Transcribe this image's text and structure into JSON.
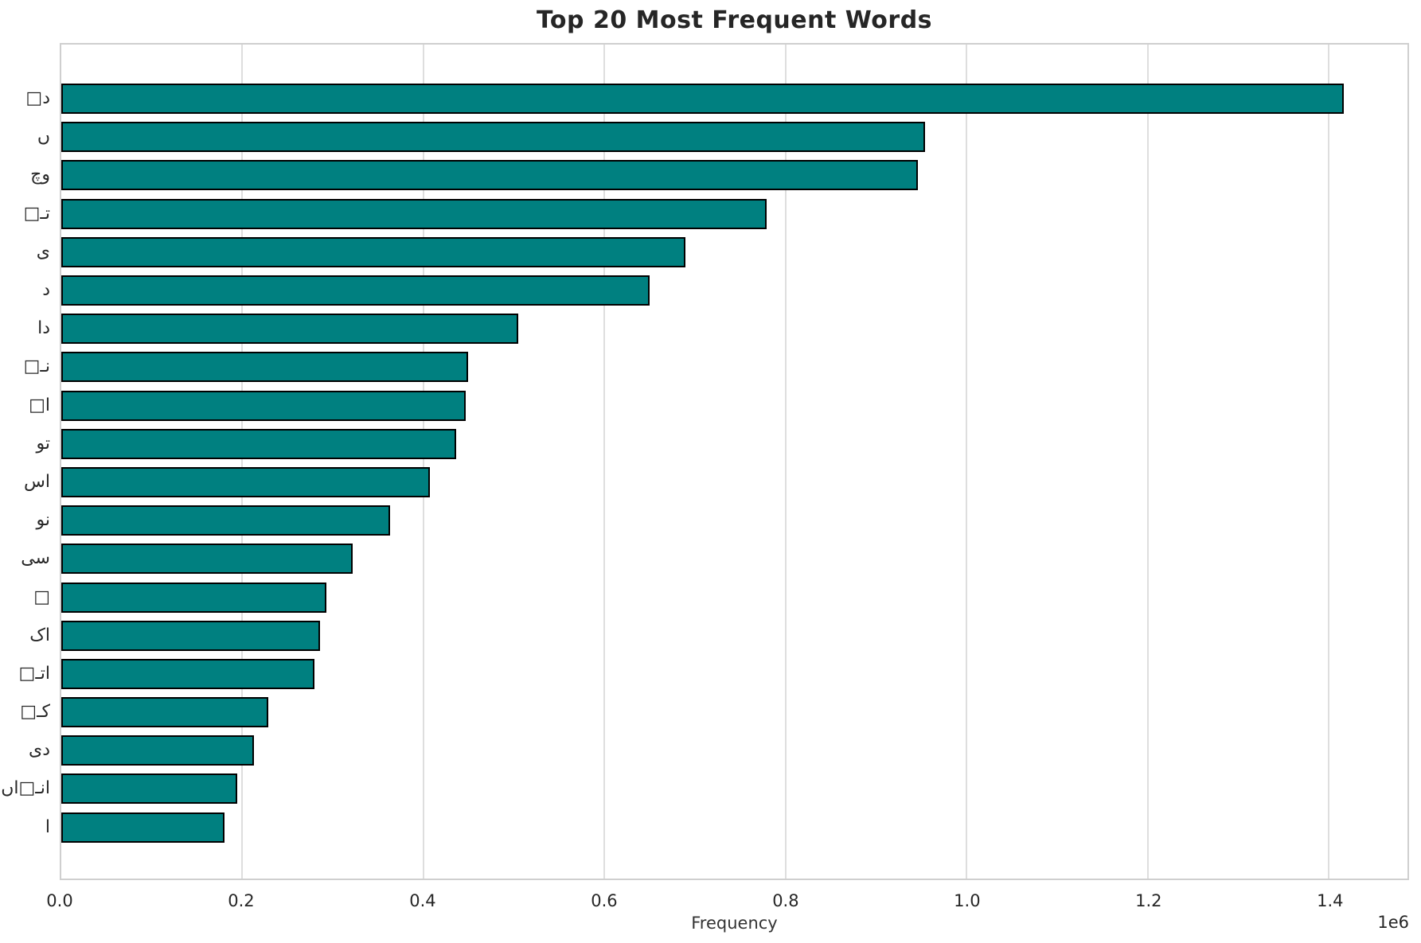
{
  "chart_data": {
    "type": "bar",
    "orientation": "horizontal",
    "title": "Top 20 Most Frequent Words",
    "xlabel": "Frequency",
    "offset_text": "1e6",
    "categories": [
      "د□",
      "ں",
      "وچ",
      "تـ□",
      "ی",
      "د",
      "دا",
      "نـ□",
      "ا□",
      "تو",
      "اس",
      "نو",
      "سی",
      "□",
      "اک",
      "اتـ□",
      "کـ□",
      "دی",
      "انـ□اں",
      "ا"
    ],
    "values": [
      1417000,
      954000,
      946000,
      779000,
      689000,
      650000,
      505000,
      449000,
      447000,
      436000,
      407000,
      363000,
      322000,
      293000,
      286000,
      280000,
      229000,
      213000,
      194000,
      180000
    ],
    "xlim": [
      0,
      1487000
    ],
    "x_ticks": [
      {
        "value": 0,
        "label": "0.0"
      },
      {
        "value": 200000,
        "label": "0.2"
      },
      {
        "value": 400000,
        "label": "0.4"
      },
      {
        "value": 600000,
        "label": "0.6"
      },
      {
        "value": 800000,
        "label": "0.8"
      },
      {
        "value": 1000000,
        "label": "1.0"
      },
      {
        "value": 1200000,
        "label": "1.2"
      },
      {
        "value": 1400000,
        "label": "1.4"
      }
    ],
    "grid": true,
    "legend_position": "none",
    "bar_color": "#008080",
    "bar_edge_color": "#000000",
    "grid_color": "#dedede"
  }
}
